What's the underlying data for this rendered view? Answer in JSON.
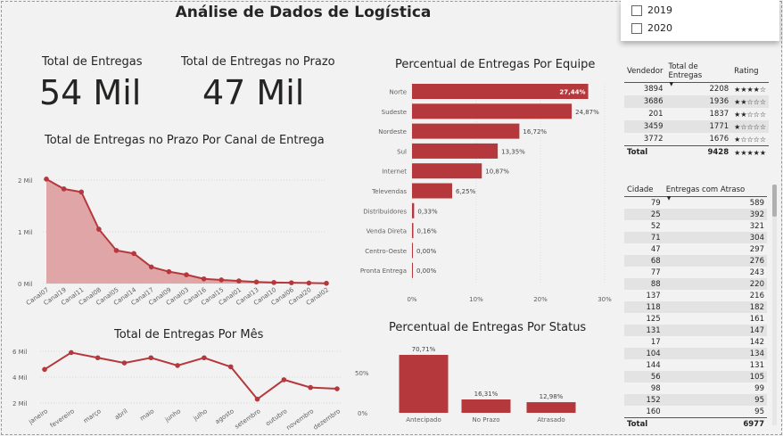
{
  "page_title": "Análise de Dados de Logística",
  "cards": {
    "total_entregas": {
      "label": "Total de Entregas",
      "value": "54 Mil"
    },
    "total_no_prazo": {
      "label": "Total de Entregas no Prazo",
      "value": "47 Mil"
    }
  },
  "slicer": {
    "items": [
      {
        "label": "2019",
        "checked": false
      },
      {
        "label": "2020",
        "checked": false
      }
    ]
  },
  "colors": {
    "accent": "#b5383c",
    "area_fill": "#e0a5a7",
    "grid": "#cccccc"
  },
  "chart_data": [
    {
      "type": "area",
      "title": "Total de Entregas no Prazo Por Canal de Entrega",
      "categories": [
        "Canal07",
        "Canal19",
        "Canal11",
        "Canal08",
        "Canal05",
        "Canal14",
        "Canal17",
        "Canal09",
        "Canal03",
        "Canal16",
        "Canal15",
        "Canal01",
        "Canal13",
        "Canal10",
        "Canal06",
        "Canal20",
        "Canal02"
      ],
      "values": [
        2020,
        1830,
        1770,
        1050,
        640,
        580,
        320,
        230,
        170,
        90,
        70,
        50,
        30,
        20,
        15,
        10,
        5
      ],
      "yticks": [
        "2 Mil",
        "1 Mil",
        "0 Mil"
      ],
      "ylim": [
        0,
        2000
      ]
    },
    {
      "type": "bar",
      "orientation": "horizontal",
      "title": "Percentual de Entregas Por Equipe",
      "categories": [
        "Norte",
        "Sudeste",
        "Nordeste",
        "Sul",
        "Internet",
        "Televendas",
        "Distribuidores",
        "Venda Direta",
        "Centro-Oeste",
        "Pronta Entrega"
      ],
      "values": [
        27.44,
        24.87,
        16.72,
        13.35,
        10.87,
        6.25,
        0.33,
        0.16,
        0.0,
        0.0
      ],
      "labels": [
        "27,44%",
        "24,87%",
        "16,72%",
        "13,35%",
        "10,87%",
        "6,25%",
        "0,33%",
        "0,16%",
        "0,00%",
        "0,00%"
      ],
      "xticks": [
        "0%",
        "10%",
        "20%",
        "30%"
      ],
      "xlim": [
        0,
        30
      ]
    },
    {
      "type": "line",
      "title": "Total de Entregas Por Mês",
      "categories": [
        "janeiro",
        "fevereiro",
        "março",
        "abril",
        "maio",
        "junho",
        "julho",
        "agosto",
        "setembro",
        "outubro",
        "novembro",
        "dezembro"
      ],
      "values": [
        4600,
        5900,
        5500,
        5100,
        5500,
        4900,
        5500,
        4800,
        2300,
        3800,
        3200,
        3100
      ],
      "yticks": [
        "6 Mil",
        "4 Mil",
        "2 Mil"
      ],
      "secondary_yticks": [
        "50%",
        "0%"
      ],
      "ylim": [
        2000,
        6000
      ]
    },
    {
      "type": "bar",
      "orientation": "vertical",
      "title": "Percentual de Entregas Por Status",
      "categories": [
        "Antecipado",
        "No Prazo",
        "Atrasado"
      ],
      "values": [
        70.71,
        16.31,
        12.98
      ],
      "labels": [
        "70,71%",
        "16,31%",
        "12,98%"
      ]
    }
  ],
  "table_vendedor": {
    "headers": [
      "Vendedor",
      "Total de Entregas",
      "Rating"
    ],
    "rows": [
      {
        "vendedor": "3894",
        "total": "2208",
        "rating": "★★★★☆"
      },
      {
        "vendedor": "3686",
        "total": "1936",
        "rating": "★★☆☆☆"
      },
      {
        "vendedor": "201",
        "total": "1837",
        "rating": "★★☆☆☆"
      },
      {
        "vendedor": "3459",
        "total": "1771",
        "rating": "★☆☆☆☆"
      },
      {
        "vendedor": "3772",
        "total": "1676",
        "rating": "★☆☆☆☆"
      }
    ],
    "total": {
      "label": "Total",
      "total": "9428",
      "rating": "★★★★★"
    }
  },
  "table_cidade": {
    "headers": [
      "Cidade",
      "Entregas com Atraso"
    ],
    "rows": [
      [
        "79",
        "589"
      ],
      [
        "25",
        "392"
      ],
      [
        "52",
        "321"
      ],
      [
        "71",
        "304"
      ],
      [
        "47",
        "297"
      ],
      [
        "68",
        "276"
      ],
      [
        "77",
        "243"
      ],
      [
        "88",
        "220"
      ],
      [
        "137",
        "216"
      ],
      [
        "118",
        "182"
      ],
      [
        "125",
        "161"
      ],
      [
        "131",
        "147"
      ],
      [
        "17",
        "142"
      ],
      [
        "104",
        "134"
      ],
      [
        "144",
        "131"
      ],
      [
        "56",
        "105"
      ],
      [
        "98",
        "99"
      ],
      [
        "152",
        "95"
      ],
      [
        "160",
        "95"
      ]
    ],
    "total": {
      "label": "Total",
      "value": "6977"
    }
  }
}
